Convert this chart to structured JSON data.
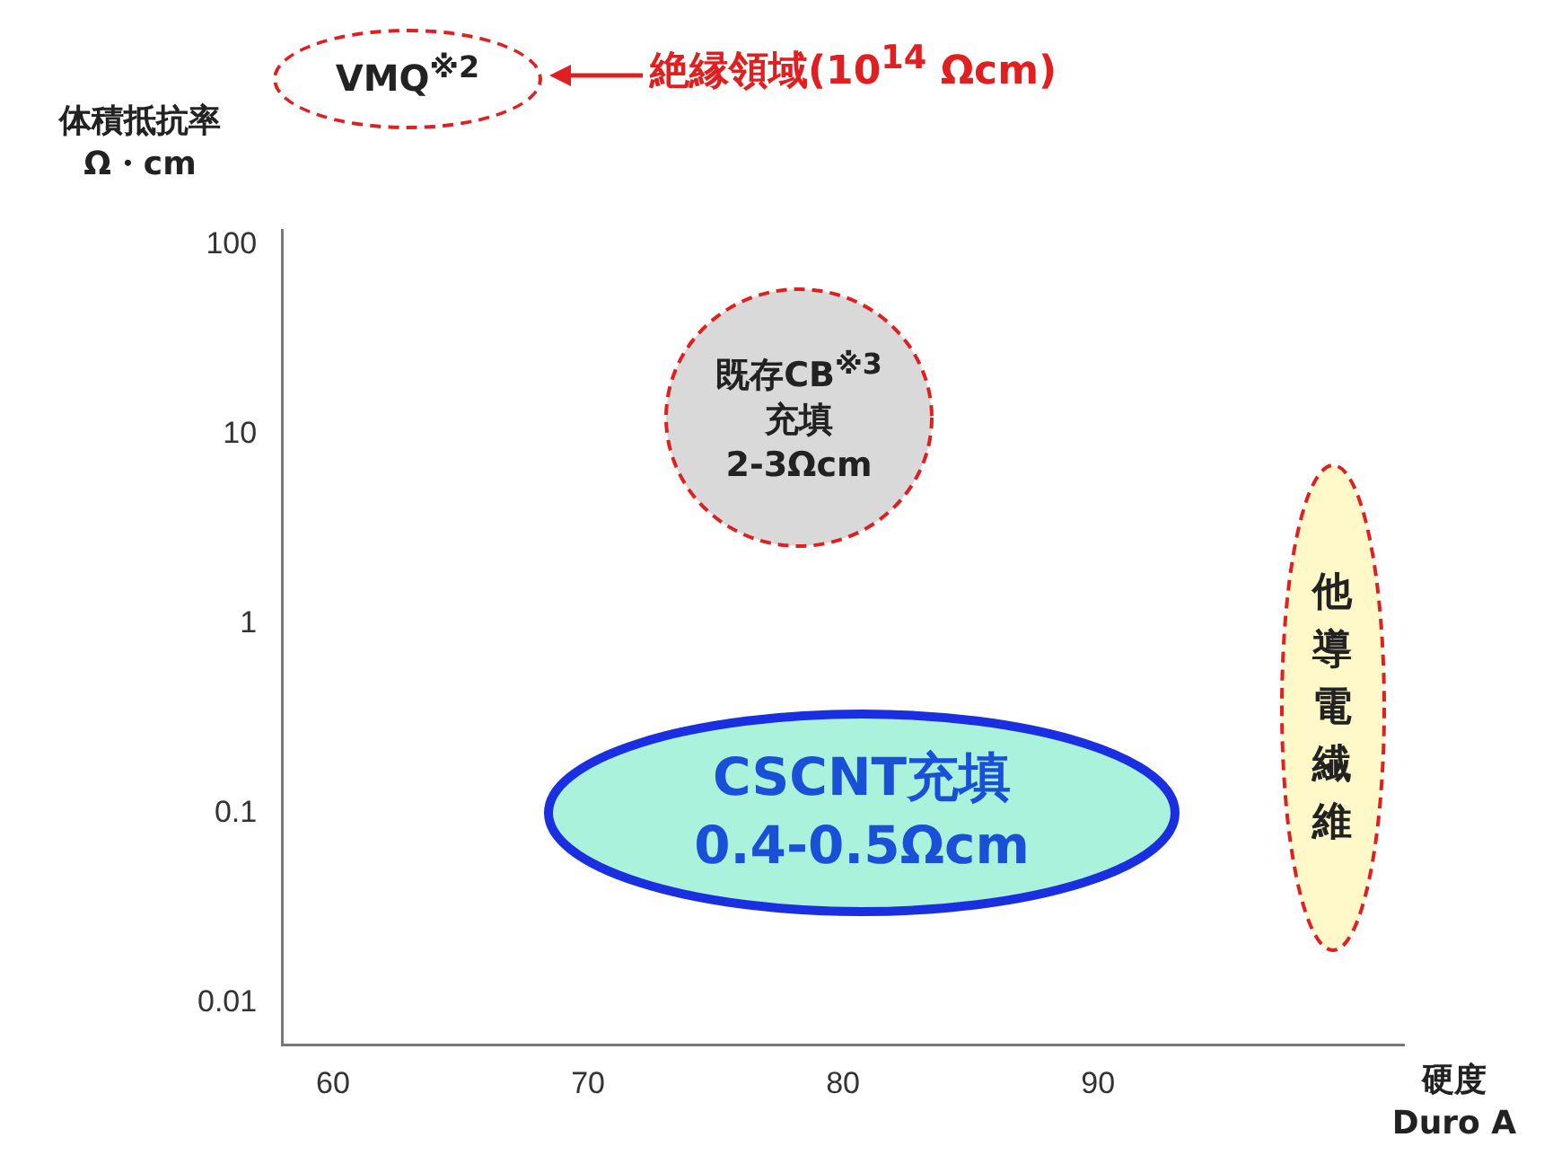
{
  "chart_data": {
    "type": "scatter",
    "xlabel": "硬度\nDuro A",
    "ylabel": "体積抵抗率\nΩ・cm",
    "annotations": [
      "VMQ$^{※2}$",
      "絶縁領域(10$^{14}$ Ωcm)",
      "既存CB$^{※3}$\n充填\n2-3Ωcm",
      "CSCNT充填\n0.4-0.5Ωcm",
      "他導電繊維"
    ],
    "xlim": [
      58,
      102
    ],
    "xticks": [
      60,
      70,
      80,
      90
    ],
    "ylim": [
      0.006,
      120
    ],
    "yticks": [
      0.01,
      0.1,
      1,
      10,
      100
    ],
    "log": "y",
    "grid": false,
    "legend": false
  }
}
